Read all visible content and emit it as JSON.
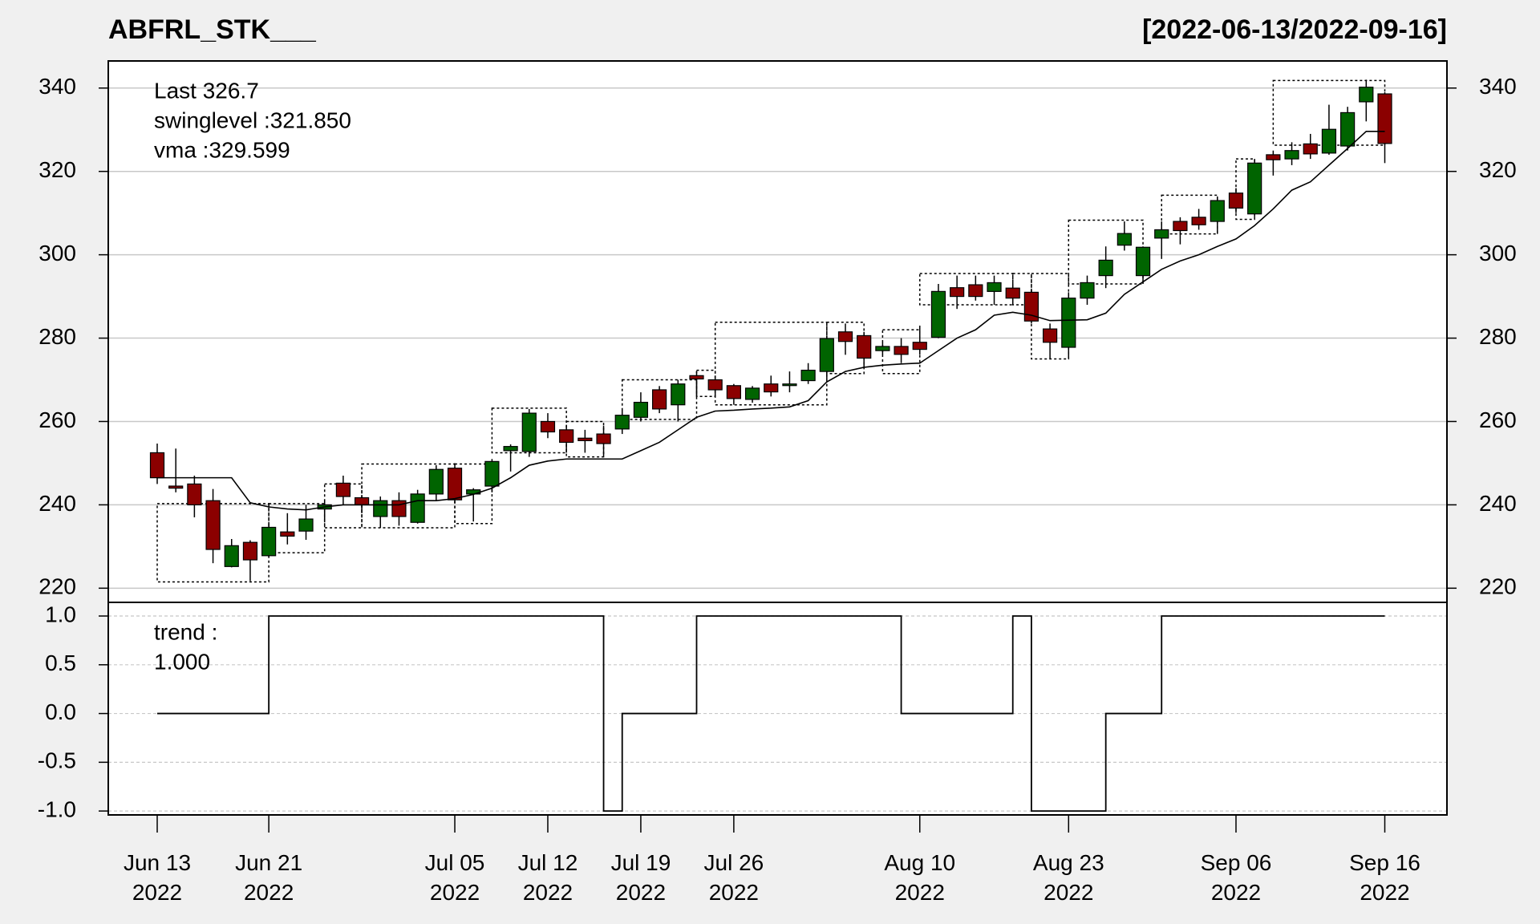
{
  "chart_data": [
    {
      "type": "candlestick",
      "title": "ABFRL_STK___",
      "subtitle": "[2022-06-13/2022-09-16]",
      "annotations": [
        {
          "text": "Last 326.7",
          "color": "#8b0000"
        },
        {
          "text": "swinglevel :321.850",
          "color": "#000000"
        },
        {
          "text": "vma :329.599",
          "color": "#000000"
        }
      ],
      "x": [
        "2022-06-13",
        "2022-06-14",
        "2022-06-15",
        "2022-06-16",
        "2022-06-17",
        "2022-06-20",
        "2022-06-21",
        "2022-06-22",
        "2022-06-23",
        "2022-06-24",
        "2022-06-27",
        "2022-06-28",
        "2022-06-29",
        "2022-06-30",
        "2022-07-01",
        "2022-07-04",
        "2022-07-05",
        "2022-07-06",
        "2022-07-07",
        "2022-07-08",
        "2022-07-11",
        "2022-07-12",
        "2022-07-13",
        "2022-07-14",
        "2022-07-15",
        "2022-07-18",
        "2022-07-19",
        "2022-07-20",
        "2022-07-21",
        "2022-07-22",
        "2022-07-25",
        "2022-07-26",
        "2022-07-27",
        "2022-07-28",
        "2022-07-29",
        "2022-08-01",
        "2022-08-02",
        "2022-08-03",
        "2022-08-04",
        "2022-08-05",
        "2022-08-08",
        "2022-08-10",
        "2022-08-11",
        "2022-08-12",
        "2022-08-16",
        "2022-08-17",
        "2022-08-18",
        "2022-08-19",
        "2022-08-22",
        "2022-08-23",
        "2022-08-24",
        "2022-08-25",
        "2022-08-26",
        "2022-08-29",
        "2022-08-30",
        "2022-09-01",
        "2022-09-02",
        "2022-09-05",
        "2022-09-06",
        "2022-09-07",
        "2022-09-08",
        "2022-09-09",
        "2022-09-12",
        "2022-09-13",
        "2022-09-14",
        "2022-09-15",
        "2022-09-16"
      ],
      "open": [
        252.5,
        244.5,
        245,
        241,
        225.2,
        231,
        227.8,
        233.5,
        233.7,
        239,
        245.2,
        241.7,
        237.2,
        241,
        235.8,
        242.6,
        248.8,
        242.6,
        244.5,
        253,
        252.8,
        260,
        258,
        256,
        257,
        258.2,
        261,
        267.6,
        264,
        271,
        270,
        268.6,
        265.3,
        269,
        268.8,
        269.8,
        272,
        281.5,
        280.6,
        277,
        278,
        279,
        280.2,
        292.1,
        292.8,
        291.2,
        292,
        291,
        282.2,
        277.8,
        289.6,
        295,
        302.3,
        295,
        304,
        308,
        309,
        308,
        314.8,
        309.8,
        324,
        323,
        326.6,
        324.4,
        326.1,
        336.7,
        338.6
      ],
      "high": [
        254.7,
        253.5,
        247,
        243.8,
        231.8,
        231.5,
        235.3,
        238,
        240,
        241,
        247,
        242,
        242,
        243,
        243.6,
        249.5,
        250,
        244,
        251,
        254.5,
        263,
        262,
        259,
        258,
        259,
        263,
        267,
        268.5,
        270,
        272,
        271,
        269,
        268.5,
        271,
        272,
        274,
        280.5,
        283.5,
        281.5,
        279,
        280,
        283,
        293,
        295,
        295,
        295,
        293,
        291.5,
        283.5,
        291,
        295,
        302,
        308,
        302,
        308,
        309,
        311,
        314,
        316,
        323,
        325,
        327,
        329,
        336,
        335.5,
        342,
        339
      ],
      "low": [
        245,
        243,
        237,
        226,
        225,
        221.7,
        227.5,
        230.5,
        231.6,
        236,
        240,
        238,
        234.5,
        235,
        235.5,
        241,
        240.5,
        236,
        243,
        248,
        251.5,
        256,
        252.5,
        252.5,
        251.5,
        257,
        260,
        262,
        260,
        266,
        266,
        264,
        264.5,
        266,
        267,
        269,
        270,
        276,
        273,
        276,
        274,
        276,
        280,
        287,
        289,
        288,
        288,
        283.5,
        275,
        275,
        288,
        292,
        301,
        293,
        299,
        302.5,
        306,
        305,
        310,
        309,
        319,
        321.5,
        323,
        324,
        325,
        332,
        322
      ],
      "close": [
        246.5,
        244,
        240,
        229.3,
        230.2,
        226.8,
        234.6,
        232.5,
        236.6,
        240,
        242,
        240,
        241,
        237.2,
        242.6,
        248.5,
        241.2,
        243.6,
        250.4,
        254,
        262,
        257.5,
        255,
        255.4,
        254.7,
        261.5,
        264.6,
        263,
        269,
        270.2,
        267.6,
        265.5,
        268,
        267.1,
        269,
        272.3,
        279.9,
        279.2,
        275.2,
        278,
        276.1,
        277.3,
        291.2,
        290,
        290,
        293.3,
        289.6,
        284.1,
        279,
        289.6,
        293.3,
        298.7,
        305.1,
        301.8,
        306,
        305.8,
        307.2,
        313,
        311.2,
        322,
        322.8,
        325,
        324.2,
        330.1,
        334.1,
        340.2,
        326.7
      ],
      "up_color": "#006400",
      "down_color": "#8b0000",
      "vma": [
        246.5,
        246.5,
        246.5,
        246.5,
        246.5,
        240.5,
        239.5,
        239,
        238.8,
        239.5,
        240,
        240,
        240,
        240,
        241,
        241,
        241.5,
        242.5,
        244,
        246.5,
        249.5,
        250.5,
        251,
        251,
        251,
        251,
        253,
        255,
        258,
        261,
        262.5,
        262.7,
        263,
        263.2,
        263.5,
        265,
        269.5,
        272,
        273,
        273.5,
        273.8,
        274,
        277,
        280,
        282,
        285.5,
        286.2,
        285.5,
        284.2,
        284.3,
        284.4,
        286,
        290.5,
        293.5,
        296.5,
        298.5,
        300,
        302,
        303.8,
        307,
        311,
        315.5,
        317.5,
        321.5,
        325.5,
        329.6,
        329.6
      ],
      "swing_boxes": [
        [
          "2022-06-13",
          "2022-06-21",
          221.5,
          240.3
        ],
        [
          "2022-06-21",
          "2022-06-24",
          228.5,
          240.3
        ],
        [
          "2022-06-24",
          "2022-06-28",
          234.5,
          245
        ],
        [
          "2022-06-28",
          "2022-07-05",
          234.5,
          249.8
        ],
        [
          "2022-07-05",
          "2022-07-07",
          235.5,
          249.8
        ],
        [
          "2022-07-07",
          "2022-07-13",
          252.5,
          263.2
        ],
        [
          "2022-07-13",
          "2022-07-15",
          251.5,
          260
        ],
        [
          "2022-07-18",
          "2022-07-22",
          260.5,
          270
        ],
        [
          "2022-07-22",
          "2022-07-25",
          266,
          272.3
        ],
        [
          "2022-07-25",
          "2022-08-02",
          264,
          283.8
        ],
        [
          "2022-08-02",
          "2022-08-04",
          271.5,
          283.8
        ],
        [
          "2022-08-05",
          "2022-08-10",
          271.5,
          282
        ],
        [
          "2022-08-10",
          "2022-08-18",
          288,
          295.5
        ],
        [
          "2022-08-18",
          "2022-08-19",
          288,
          295.5
        ],
        [
          "2022-08-19",
          "2022-08-23",
          275,
          295.5
        ],
        [
          "2022-08-23",
          "2022-08-29",
          293,
          308.3
        ],
        [
          "2022-08-30",
          "2022-09-05",
          305,
          314.3
        ],
        [
          "2022-09-06",
          "2022-09-07",
          308.5,
          323
        ],
        [
          "2022-09-08",
          "2022-09-16",
          326.3,
          341.8
        ]
      ],
      "ylim": [
        216.6,
        346.5
      ],
      "yticks": [
        220,
        240,
        260,
        280,
        300,
        320,
        340
      ],
      "grid": true,
      "xticks": [
        {
          "value": "2022-06-13",
          "label": "Jun 13\n2022"
        },
        {
          "value": "2022-06-21",
          "label": "Jun 21\n2022"
        },
        {
          "value": "2022-07-05",
          "label": "Jul 05\n2022"
        },
        {
          "value": "2022-07-12",
          "label": "Jul 12\n2022"
        },
        {
          "value": "2022-07-19",
          "label": "Jul 19\n2022"
        },
        {
          "value": "2022-07-26",
          "label": "Jul 26\n2022"
        },
        {
          "value": "2022-08-10",
          "label": "Aug 10\n2022"
        },
        {
          "value": "2022-08-23",
          "label": "Aug 23\n2022"
        },
        {
          "value": "2022-09-06",
          "label": "Sep 06\n2022"
        },
        {
          "value": "2022-09-16",
          "label": "Sep 16\n2022"
        }
      ]
    },
    {
      "type": "step",
      "annotations": [
        {
          "text": "trend :",
          "color": "#000000"
        },
        {
          "text": "1.000",
          "color": "#000000"
        }
      ],
      "values": [
        0,
        0,
        0,
        0,
        0,
        0,
        1,
        1,
        1,
        1,
        1,
        1,
        1,
        1,
        1,
        1,
        1,
        1,
        1,
        1,
        1,
        1,
        1,
        1,
        -1,
        0,
        0,
        0,
        0,
        1,
        1,
        1,
        1,
        1,
        1,
        1,
        1,
        1,
        1,
        1,
        0,
        0,
        0,
        0,
        0,
        0,
        1,
        -1,
        -1,
        -1,
        -1,
        0,
        0,
        0,
        1,
        1,
        1,
        1,
        1,
        1,
        1,
        1,
        1,
        1,
        1,
        1,
        1
      ],
      "color": "#000000",
      "ylim": [
        -1.04,
        1.14
      ],
      "yticks": [
        {
          "value": -1,
          "label": "-1.0"
        },
        {
          "value": -0.5,
          "label": "-0.5"
        },
        {
          "value": 0,
          "label": "0.0"
        },
        {
          "value": 0.5,
          "label": "0.5"
        },
        {
          "value": 1,
          "label": "1.0"
        }
      ],
      "grid": true
    }
  ]
}
